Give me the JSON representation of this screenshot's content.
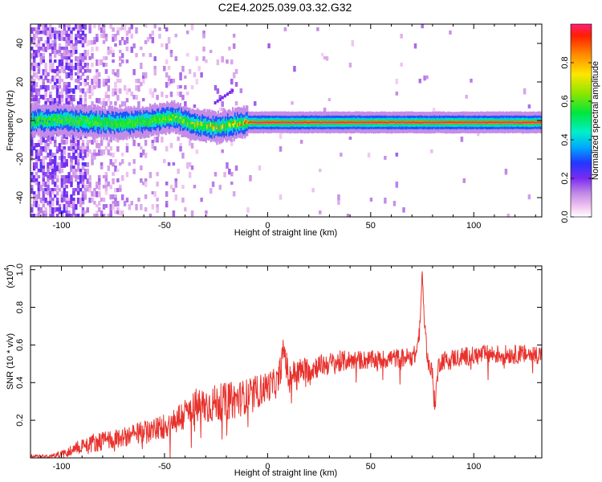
{
  "figure_title": "C2E4.2025.039.03.32.G32",
  "colorbar": {
    "label": "Normalized spectral amplitude",
    "ticks": [
      "0.0",
      "0.2",
      "0.4",
      "0.6",
      "0.8"
    ],
    "tick_values": [
      0.0,
      0.2,
      0.4,
      0.6,
      0.8
    ]
  },
  "chart_data": [
    {
      "type": "heatmap",
      "xlabel": "Height of straight line (km)",
      "ylabel": "Frequency (Hz)",
      "xlim": [
        -115,
        133
      ],
      "ylim": [
        -50,
        50
      ],
      "xticks": [
        -100,
        -50,
        0,
        50,
        100
      ],
      "xtick_labels": [
        "-100",
        "-50",
        "0",
        "50",
        "100"
      ],
      "yticks": [
        -40,
        -20,
        0,
        20,
        40
      ],
      "ytick_labels": [
        "-40",
        "-20",
        "0",
        "20",
        "40"
      ],
      "colormap": "rainbow (0 = white/pink, 1 = red)",
      "ridge": {
        "description": "narrow high-amplitude band near 0 Hz",
        "x": [
          -112,
          -100,
          -90,
          -80,
          -70,
          -60,
          -50,
          -45,
          -40,
          -35,
          -30,
          -25,
          -20,
          -15,
          -10,
          -5,
          0,
          25,
          50,
          75,
          100,
          133
        ],
        "frequency_hz": [
          0,
          0.5,
          -0.5,
          -1,
          -1.5,
          -0.5,
          1,
          1.5,
          -0.5,
          -2,
          -3,
          -3.5,
          -2.5,
          -1.5,
          -1,
          -1,
          -1,
          -1,
          -1,
          -1,
          -1,
          -1
        ],
        "peak_amplitude": [
          0.3,
          0.4,
          0.45,
          0.55,
          0.55,
          0.6,
          0.65,
          0.7,
          0.75,
          0.8,
          0.85,
          0.85,
          0.85,
          0.9,
          0.95,
          1,
          1,
          1,
          1,
          1,
          1,
          1
        ]
      }
    },
    {
      "type": "line",
      "xlabel": "Height of straight line (km)",
      "ylabel": "SNR (10 * v/v)",
      "y_multiplier_label": "(x10",
      "y_multiplier_exponent": "4",
      "xlim": [
        -115,
        133
      ],
      "ylim": [
        0,
        1.02
      ],
      "xticks": [
        -100,
        -50,
        0,
        50,
        100
      ],
      "xtick_labels": [
        "-100",
        "-50",
        "0",
        "50",
        "100"
      ],
      "yticks": [
        0.2,
        0.4,
        0.6,
        0.8,
        1.0
      ],
      "ytick_labels": [
        "0.2",
        "0.4",
        "0.6",
        "0.8",
        "1.0"
      ],
      "color": "#e8322d",
      "series": [
        {
          "x": [
            -115,
            -105,
            -100,
            -95,
            -90,
            -85,
            -80,
            -75,
            -70,
            -65,
            -60,
            -55,
            -50,
            -45,
            -40,
            -35,
            -30,
            -25,
            -20,
            -15,
            -10,
            -5,
            0,
            5,
            8,
            10,
            15,
            20,
            25,
            30,
            35,
            40,
            45,
            50,
            55,
            60,
            65,
            70,
            72,
            74,
            75,
            76,
            78,
            80,
            81,
            83,
            85,
            90,
            95,
            100,
            105,
            110,
            115,
            120,
            125,
            130,
            133
          ],
          "y": [
            0.01,
            0.01,
            0.02,
            0.04,
            0.07,
            0.08,
            0.09,
            0.1,
            0.11,
            0.12,
            0.14,
            0.15,
            0.17,
            0.2,
            0.23,
            0.27,
            0.28,
            0.29,
            0.3,
            0.31,
            0.33,
            0.35,
            0.38,
            0.4,
            0.58,
            0.43,
            0.46,
            0.47,
            0.49,
            0.5,
            0.51,
            0.52,
            0.52,
            0.52,
            0.52,
            0.53,
            0.53,
            0.54,
            0.55,
            0.7,
            0.98,
            0.7,
            0.5,
            0.44,
            0.28,
            0.5,
            0.52,
            0.53,
            0.54,
            0.54,
            0.55,
            0.55,
            0.55,
            0.55,
            0.55,
            0.55,
            0.55
          ],
          "noise_amplitude": [
            0.01,
            0.01,
            0.02,
            0.03,
            0.04,
            0.05,
            0.05,
            0.05,
            0.05,
            0.06,
            0.06,
            0.06,
            0.07,
            0.08,
            0.09,
            0.1,
            0.1,
            0.1,
            0.1,
            0.1,
            0.09,
            0.09,
            0.08,
            0.08,
            0.08,
            0.08,
            0.07,
            0.07,
            0.06,
            0.06,
            0.06,
            0.05,
            0.05,
            0.05,
            0.05,
            0.05,
            0.05,
            0.05,
            0.05,
            0.05,
            0.04,
            0.05,
            0.05,
            0.06,
            0.06,
            0.05,
            0.05,
            0.05,
            0.05,
            0.05,
            0.05,
            0.05,
            0.05,
            0.05,
            0.05,
            0.05,
            0.05
          ]
        }
      ]
    }
  ]
}
